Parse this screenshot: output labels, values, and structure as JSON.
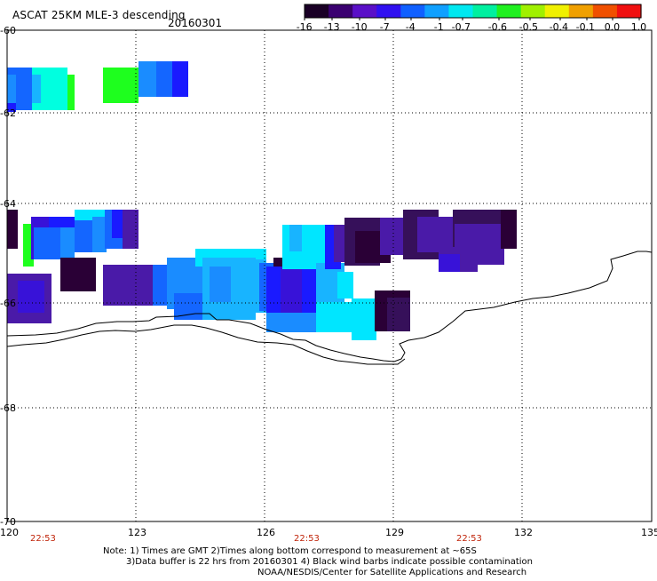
{
  "header": {
    "title": "ASCAT 25KM MLE-3 descending",
    "date": "20160301"
  },
  "colorbar": {
    "tick_labels": [
      "-16",
      "-13",
      "-10",
      "-7",
      "-4",
      "-1",
      "-0.7",
      "-0.6",
      "-0.5",
      "-0.4",
      "-0.1",
      "0.0",
      "1.0"
    ],
    "colors": [
      "#1a0026",
      "#3a0070",
      "#5a10c8",
      "#3010f0",
      "#1060ff",
      "#10a0ff",
      "#00e8f0",
      "#00f0a0",
      "#20f020",
      "#a0f000",
      "#f0f000",
      "#f0a000",
      "#f05000",
      "#f01010"
    ]
  },
  "map": {
    "lon_ticks": [
      "120",
      "123",
      "126",
      "129",
      "132",
      "135"
    ],
    "lat_ticks": [
      "-60",
      "-62",
      "-64",
      "-66",
      "-68",
      "-70"
    ],
    "time_labels": [
      "22:53",
      "22:53",
      "22:53"
    ]
  },
  "notes": {
    "line1": "Note: 1) Times are GMT 2)Times along bottom correspond to measurement at ~65S",
    "line2": "3)Data buffer is 22 hrs from 20160301 4) Black wind barbs indicate possible contamination",
    "line3": "NOAA/NESDIS/Center for Satellite Applications and Research"
  }
}
